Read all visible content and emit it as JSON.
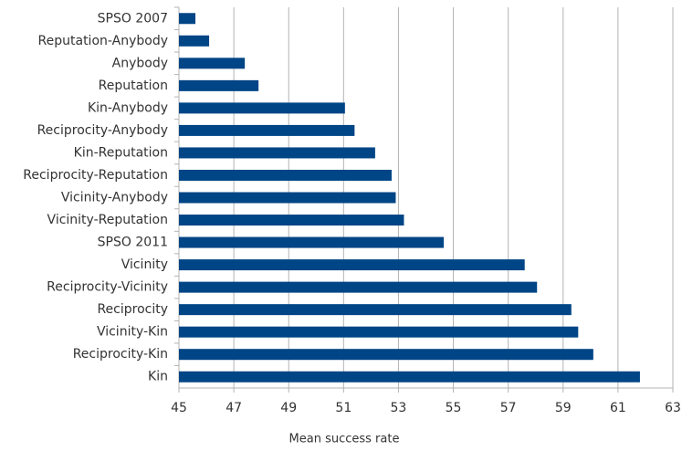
{
  "chart_data": {
    "type": "hbar",
    "x_label": "Mean success rate",
    "categories": [
      "SPSO 2007",
      "Reputation-Anybody",
      "Anybody",
      "Reputation",
      "Kin-Anybody",
      "Reciprocity-Anybody",
      "Kin-Reputation",
      "Reciprocity-Reputation",
      "Vicinity-Anybody",
      "Vicinity-Reputation",
      "SPSO 2011",
      "Vicinity",
      "Reciprocity-Vicinity",
      "Reciprocity",
      "Vicinity-Kin",
      "Reciprocity-Kin",
      "Kin"
    ],
    "values": [
      45.6,
      46.1,
      47.4,
      47.9,
      51.05,
      51.4,
      52.15,
      52.75,
      52.9,
      53.2,
      54.65,
      57.6,
      58.05,
      59.3,
      59.55,
      60.1,
      61.8
    ],
    "color": "#004586",
    "xlim": [
      45,
      63
    ],
    "xticks": [
      45,
      47,
      49,
      51,
      53,
      55,
      57,
      59,
      61,
      63
    ],
    "grid": true
  }
}
